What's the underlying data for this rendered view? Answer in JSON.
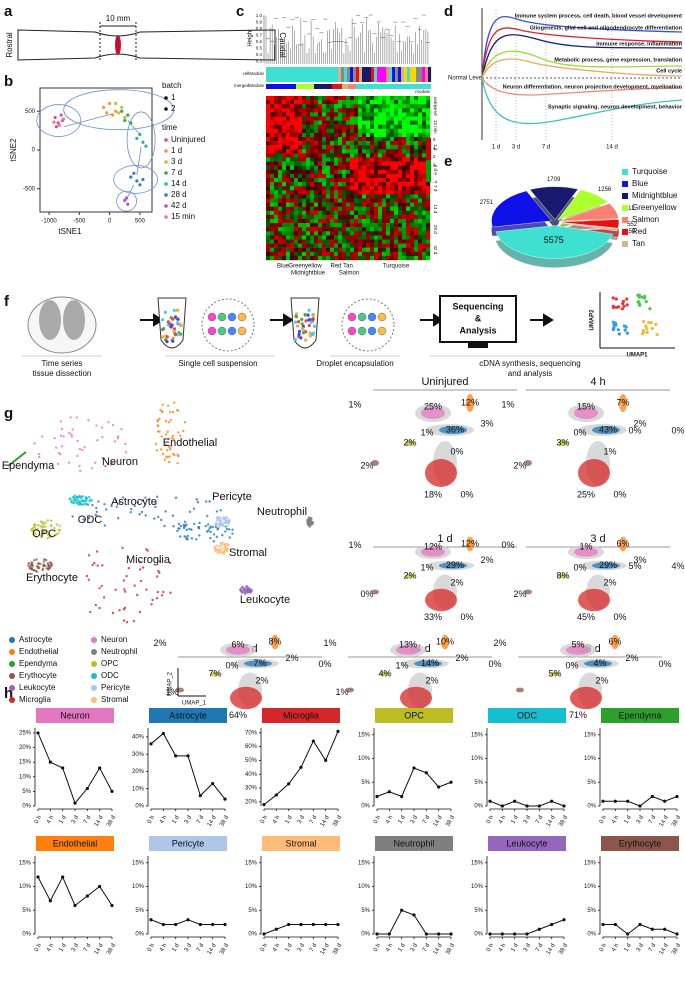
{
  "panel_labels": [
    "a",
    "b",
    "c",
    "d",
    "e",
    "f",
    "g",
    "h"
  ],
  "panel_a": {
    "rostral": "Rostral",
    "caudal": "Caudal",
    "scale": "10 mm"
  },
  "panel_c": {
    "height_label": "Height",
    "height_ticks": [
      "1.0",
      "0.9",
      "0.8",
      "0.7",
      "0.6",
      "0.5",
      "0.4",
      "0.3"
    ],
    "rows": [
      "cellModule",
      "mergedModule"
    ],
    "module_label": "module",
    "time_labels": [
      "uninjured",
      "15 min",
      "1 d",
      "3 d",
      "7 d",
      "14 d",
      "28 d",
      "42 d"
    ],
    "scale_ticks": [
      "6",
      "4",
      "2",
      "0",
      "-2",
      "-4"
    ],
    "module_names": [
      "Blue",
      "Greenyellow",
      "Midnightblue",
      "Red",
      "Tan",
      "Salmon",
      "Turquoise"
    ]
  },
  "panel_d": {
    "normal_level": "Normal Level",
    "terms": [
      "Immune system process, cell death, blood vessel development",
      "Gliogenesis, glial cell and oligodendrocyte differentiation",
      "Immune response, inflammation",
      "Metabolic process, gene expression, translation",
      "Cell cycle",
      "Neuron differentiation, neuron projection development, myelination",
      "Synaptic signaling, neuron development, behavior"
    ],
    "term_colors": [
      "#3b4fe0",
      "#e0202a",
      "#1a1a80",
      "#a8d838",
      "#e8a868",
      "#f08a78",
      "#3cc4c4"
    ],
    "times": [
      "1 d",
      "3 d",
      "7 d",
      "14 d"
    ]
  },
  "panel_f": {
    "steps": [
      [
        "Time series",
        "tissue dissection"
      ],
      [
        "Single cell suspension"
      ],
      [
        "Droplet encapsulation"
      ],
      [
        "cDNA synthesis, sequencing",
        "and analysis"
      ]
    ],
    "sequencing": [
      "Sequencing",
      "&",
      "Analysis"
    ],
    "umap2": "UMAP2",
    "umap1": "UMAP1"
  },
  "panel_g": {
    "map_labels": [
      "Endothelial",
      "Ependyma",
      "Neuron",
      "Astrocyte",
      "Pericyte",
      "ODC",
      "Neutrophil",
      "OPC",
      "Stromal",
      "Erythocyte",
      "Microglia",
      "Leukocyte"
    ],
    "legend": [
      "Astrocyte",
      "Endothelial",
      "Ependyma",
      "Erythocyte",
      "Leukocyte",
      "Microglia",
      "Neuron",
      "Neutrophil",
      "OPC",
      "ODC",
      "Pericyte",
      "Stromal"
    ],
    "legend_colors": [
      "#1f77b4",
      "#ff7f0e",
      "#2ca02c",
      "#8c564b",
      "#9467bd",
      "#d62728",
      "#e377c2",
      "#7f7f7f",
      "#bcbd22",
      "#17becf",
      "#aec7e8",
      "#ffbb78"
    ],
    "umap_axes": [
      "UMAP_2",
      "UMAP_1"
    ],
    "timepoints": [
      {
        "title": "Uninjured",
        "labels": [
          "1%",
          "25%",
          "12%",
          "3%",
          "2%",
          "1%",
          "36%",
          "0%",
          "2%",
          "0%",
          "18%",
          "0%"
        ]
      },
      {
        "title": "4 h",
        "labels": [
          "1%",
          "15%",
          "7%",
          "2%",
          "3%",
          "0%",
          "43%",
          "0%",
          "2%",
          "1%",
          "25%",
          "0%"
        ]
      },
      {
        "title": "1 d",
        "labels": [
          "1%",
          "12%",
          "12%",
          "2%",
          "2%",
          "1%",
          "29%",
          "5%",
          "0%",
          "2%",
          "33%",
          "0%"
        ]
      },
      {
        "title": "3 d",
        "labels": [
          "0%",
          "1%",
          "6%",
          "3%",
          "8%",
          "0%",
          "29%",
          "4%",
          "2%",
          "2%",
          "45%",
          "0%"
        ]
      },
      {
        "title": "7 d",
        "labels": [
          "2%",
          "6%",
          "8%",
          "2%",
          "7%",
          "0%",
          "7%",
          "0%",
          "1%",
          "2%",
          "64%",
          "1%"
        ]
      },
      {
        "title": "14 d",
        "labels": [
          "1%",
          "13%",
          "10%",
          "2%",
          "4%",
          "1%",
          "14%",
          "0%",
          "1%",
          "2%",
          "50%",
          "2%"
        ]
      },
      {
        "title": "38 d",
        "labels": [
          "2%",
          "5%",
          "6%",
          "2%",
          "5%",
          "0%",
          "4%",
          "0%",
          null,
          "2%",
          "71%",
          "3%"
        ]
      }
    ]
  },
  "chart_data": [
    {
      "type": "scatter",
      "xlabel": "tSNE1",
      "ylabel": "tSNE2",
      "xlim": [
        -1150,
        700
      ],
      "ylim": [
        -800,
        800
      ],
      "xticks": [
        -1000,
        -500,
        0,
        500
      ],
      "yticks": [
        -500,
        0,
        500
      ],
      "batch_title": "batch",
      "batches": [
        "1",
        "2"
      ],
      "legend_title": "time",
      "series": [
        {
          "name": "Uninjured",
          "color": "#d64fb0",
          "x": [
            -900,
            -850,
            -800,
            -880,
            -780
          ],
          "y": [
            420,
            350,
            450,
            300,
            380
          ]
        },
        {
          "name": "1 d",
          "color": "#f29a3a",
          "x": [
            -100,
            0,
            100,
            50,
            -50
          ],
          "y": [
            550,
            600,
            500,
            450,
            480
          ]
        },
        {
          "name": "3 d",
          "color": "#b8c430",
          "x": [
            100,
            200,
            150,
            250
          ],
          "y": [
            600,
            550,
            480,
            420
          ]
        },
        {
          "name": "7 d",
          "color": "#3aa84a",
          "x": [
            200,
            300,
            250,
            350
          ],
          "y": [
            500,
            450,
            380,
            350
          ]
        },
        {
          "name": "14 d",
          "color": "#2ab0a8",
          "x": [
            450,
            500,
            550,
            600
          ],
          "y": [
            150,
            200,
            100,
            50
          ]
        },
        {
          "name": "28 d",
          "color": "#3a7ad0",
          "x": [
            350,
            400,
            450,
            500,
            550
          ],
          "y": [
            -350,
            -300,
            -400,
            -450,
            -380
          ]
        },
        {
          "name": "42 d",
          "color": "#9a5ad0",
          "x": [
            250,
            300,
            280
          ],
          "y": [
            -650,
            -700,
            -620
          ]
        },
        {
          "name": "15 min",
          "color": "#f07a6a",
          "x": [
            -830,
            -760,
            -920
          ],
          "y": [
            320,
            400,
            360
          ]
        }
      ]
    },
    {
      "type": "pie",
      "categories": [
        "Turquoise",
        "Blue",
        "Midnightblue",
        "Greenyellow",
        "Salmon",
        "Red",
        "Tan"
      ],
      "values": [
        5575,
        2751,
        1709,
        1256,
        1012,
        552,
        158
      ],
      "colors": [
        "#40e0d0",
        "#1010e8",
        "#191970",
        "#adff2f",
        "#fa8072",
        "#e81010",
        "#d2b48c"
      ]
    },
    {
      "type": "line",
      "title": "Neuron",
      "color": "#e377c2",
      "categories": [
        "0 h",
        "4 h",
        "1 d",
        "3 d",
        "7 d",
        "14 d",
        "38 d"
      ],
      "values": [
        25,
        15,
        13,
        1,
        6,
        13,
        5
      ],
      "ylim": [
        0,
        26
      ],
      "yticks": [
        {
          "value": 0,
          "label": "0%"
        },
        {
          "value": 5,
          "label": "5%"
        },
        {
          "value": 10,
          "label": "10%"
        },
        {
          "value": 15,
          "label": "15%"
        },
        {
          "value": 20,
          "label": "20%"
        },
        {
          "value": 25,
          "label": "25%"
        }
      ]
    },
    {
      "type": "line",
      "title": "Astrocyte",
      "color": "#1f77b4",
      "categories": [
        "0 h",
        "4 h",
        "1 d",
        "3 d",
        "7 d",
        "14 d",
        "38 d"
      ],
      "values": [
        36,
        42,
        29,
        29,
        6,
        13,
        4
      ],
      "ylim": [
        0,
        44
      ],
      "yticks": [
        {
          "value": 0,
          "label": "0%"
        },
        {
          "value": 10,
          "label": "10%"
        },
        {
          "value": 20,
          "label": "20%"
        },
        {
          "value": 30,
          "label": "30%"
        },
        {
          "value": 40,
          "label": "40%"
        }
      ]
    },
    {
      "type": "line",
      "title": "Microglia",
      "color": "#d62728",
      "categories": [
        "0 h",
        "4 h",
        "1 d",
        "3 d",
        "7 d",
        "14 d",
        "38 d"
      ],
      "values": [
        18,
        25,
        33,
        45,
        64,
        50,
        71
      ],
      "ylim": [
        17,
        72
      ],
      "yticks": [
        {
          "value": 20,
          "label": "20%"
        },
        {
          "value": 30,
          "label": "30%"
        },
        {
          "value": 40,
          "label": "40%"
        },
        {
          "value": 50,
          "label": "50%"
        },
        {
          "value": 60,
          "label": "60%"
        },
        {
          "value": 70,
          "label": "70%"
        }
      ]
    },
    {
      "type": "line",
      "title": "OPC",
      "color": "#bcbd22",
      "categories": [
        "0 h",
        "4 h",
        "1 d",
        "3 d",
        "7 d",
        "14 d",
        "38 d"
      ],
      "values": [
        2,
        3,
        2,
        8,
        7,
        4,
        5
      ],
      "ylim": [
        0,
        16
      ],
      "yticks": [
        {
          "value": 0,
          "label": "0%"
        },
        {
          "value": 5,
          "label": "5%"
        },
        {
          "value": 10,
          "label": "10%"
        },
        {
          "value": 15,
          "label": "15%"
        }
      ]
    },
    {
      "type": "line",
      "title": "ODC",
      "color": "#17becf",
      "categories": [
        "0 h",
        "4 h",
        "1 d",
        "3 d",
        "7 d",
        "14 d",
        "38 d"
      ],
      "values": [
        1,
        0,
        1,
        0,
        0,
        1,
        0
      ],
      "ylim": [
        0,
        16
      ],
      "yticks": [
        {
          "value": 0,
          "label": "0%"
        },
        {
          "value": 5,
          "label": "5%"
        },
        {
          "value": 10,
          "label": "10%"
        },
        {
          "value": 15,
          "label": "15%"
        }
      ]
    },
    {
      "type": "line",
      "title": "Ependyma",
      "color": "#2ca02c",
      "categories": [
        "0 h",
        "4 h",
        "1 d",
        "3 d",
        "7 d",
        "14 d",
        "38 d"
      ],
      "values": [
        1,
        1,
        1,
        0,
        2,
        1,
        2
      ],
      "ylim": [
        0,
        16
      ],
      "yticks": [
        {
          "value": 0,
          "label": "0%"
        },
        {
          "value": 5,
          "label": "5%"
        },
        {
          "value": 10,
          "label": "10%"
        },
        {
          "value": 15,
          "label": "15%"
        }
      ]
    },
    {
      "type": "line",
      "title": "Endothelial",
      "color": "#ff7f0e",
      "categories": [
        "0 h",
        "4 h",
        "1 d",
        "3 d",
        "7 d",
        "14 d",
        "38 d"
      ],
      "values": [
        12,
        7,
        12,
        6,
        8,
        10,
        6
      ],
      "ylim": [
        0,
        16
      ],
      "yticks": [
        {
          "value": 0,
          "label": "0%"
        },
        {
          "value": 5,
          "label": "5%"
        },
        {
          "value": 10,
          "label": "10%"
        },
        {
          "value": 15,
          "label": "15%"
        }
      ]
    },
    {
      "type": "line",
      "title": "Pericyte",
      "color": "#aec7e8",
      "categories": [
        "0 h",
        "4 h",
        "1 d",
        "3 d",
        "7 d",
        "14 d",
        "38 d"
      ],
      "values": [
        3,
        2,
        2,
        3,
        2,
        2,
        2
      ],
      "ylim": [
        0,
        16
      ],
      "yticks": [
        {
          "value": 0,
          "label": "0%"
        },
        {
          "value": 5,
          "label": "5%"
        },
        {
          "value": 10,
          "label": "10%"
        },
        {
          "value": 15,
          "label": "15%"
        }
      ]
    },
    {
      "type": "line",
      "title": "Stromal",
      "color": "#ffbb78",
      "categories": [
        "0 h",
        "4 h",
        "1 d",
        "3 d",
        "7 d",
        "14 d",
        "38 d"
      ],
      "values": [
        0,
        1,
        2,
        2,
        2,
        2,
        2
      ],
      "ylim": [
        0,
        16
      ],
      "yticks": [
        {
          "value": 0,
          "label": "0%"
        },
        {
          "value": 5,
          "label": "5%"
        },
        {
          "value": 10,
          "label": "10%"
        },
        {
          "value": 15,
          "label": "15%"
        }
      ]
    },
    {
      "type": "line",
      "title": "Neutrophil",
      "color": "#7f7f7f",
      "categories": [
        "0 h",
        "4 h",
        "1 d",
        "3 d",
        "7 d",
        "14 d",
        "38 d"
      ],
      "values": [
        0,
        0,
        5,
        4,
        0,
        0,
        0
      ],
      "ylim": [
        0,
        16
      ],
      "yticks": [
        {
          "value": 0,
          "label": "0%"
        },
        {
          "value": 5,
          "label": "5%"
        },
        {
          "value": 10,
          "label": "10%"
        },
        {
          "value": 15,
          "label": "15%"
        }
      ]
    },
    {
      "type": "line",
      "title": "Leukocyte",
      "color": "#9467bd",
      "categories": [
        "0 h",
        "4 h",
        "1 d",
        "3 d",
        "7 d",
        "14 d",
        "38 d"
      ],
      "values": [
        0,
        0,
        0,
        0,
        1,
        2,
        3
      ],
      "ylim": [
        0,
        16
      ],
      "yticks": [
        {
          "value": 0,
          "label": "0%"
        },
        {
          "value": 5,
          "label": "5%"
        },
        {
          "value": 10,
          "label": "10%"
        },
        {
          "value": 15,
          "label": "15%"
        }
      ]
    },
    {
      "type": "line",
      "title": "Erythocyte",
      "color": "#8c564b",
      "categories": [
        "0 h",
        "4 h",
        "1 d",
        "3 d",
        "7 d",
        "14 d",
        "38 d"
      ],
      "values": [
        2,
        2,
        0,
        2,
        1,
        1,
        0
      ],
      "ylim": [
        0,
        16
      ],
      "yticks": [
        {
          "value": 0,
          "label": "0%"
        },
        {
          "value": 5,
          "label": "5%"
        },
        {
          "value": 10,
          "label": "10%"
        },
        {
          "value": 15,
          "label": "15%"
        }
      ]
    }
  ]
}
